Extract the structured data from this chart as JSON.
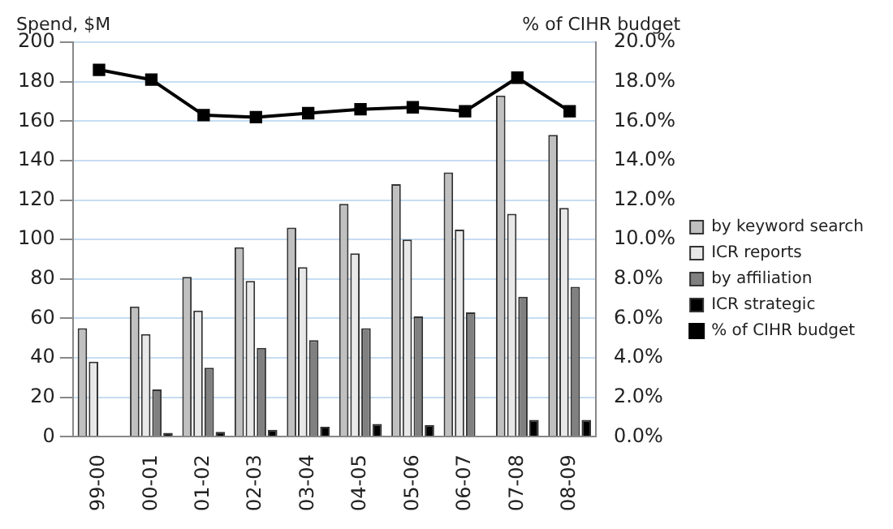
{
  "chart_data": {
    "type": "bar",
    "ylabel": "Spend, $M",
    "y2label": "% of CIHR budget",
    "categories": [
      "99-00",
      "00-01",
      "01-02",
      "02-03",
      "03-04",
      "04-05",
      "05-06",
      "06-07",
      "07-08",
      "08-09"
    ],
    "series": [
      {
        "name": "by keyword search",
        "color": "#c0c0c0",
        "values": [
          55,
          66,
          81,
          96,
          106,
          118,
          128,
          134,
          173,
          153
        ]
      },
      {
        "name": "ICR reports",
        "color": "#e8e8e8",
        "values": [
          38,
          52,
          64,
          79,
          86,
          93,
          100,
          105,
          113,
          116
        ]
      },
      {
        "name": "by affiliation",
        "color": "#808080",
        "values": [
          null,
          24,
          35,
          45,
          49,
          55,
          61,
          63,
          71,
          76
        ]
      },
      {
        "name": "ICR strategic",
        "color": "#000000",
        "values": [
          null,
          2,
          2.5,
          3.5,
          5,
          6.5,
          6,
          null,
          8.5,
          8.5
        ]
      },
      {
        "name": "% of CIHR budget",
        "type": "line",
        "axis": "y2",
        "color": "#000000",
        "marker": "square",
        "values": [
          18.6,
          18.1,
          16.3,
          16.2,
          16.4,
          16.6,
          16.7,
          16.5,
          18.2,
          16.5
        ]
      }
    ],
    "ylim": [
      0,
      200
    ],
    "yticks": [
      0,
      20,
      40,
      60,
      80,
      100,
      120,
      140,
      160,
      180,
      200
    ],
    "y2lim": [
      0,
      20
    ],
    "y2ticks": [
      {
        "value": 0,
        "label": "0.0%"
      },
      {
        "value": 2,
        "label": "2.0%"
      },
      {
        "value": 4,
        "label": "4.0%"
      },
      {
        "value": 6,
        "label": "6.0%"
      },
      {
        "value": 8,
        "label": "8.0%"
      },
      {
        "value": 10,
        "label": "10.0%"
      },
      {
        "value": 12,
        "label": "12.0%"
      },
      {
        "value": 14,
        "label": "14.0%"
      },
      {
        "value": 16,
        "label": "16.0%"
      },
      {
        "value": 18,
        "label": "18.0%"
      },
      {
        "value": 20,
        "label": "20.0%"
      }
    ],
    "grid": "y",
    "legend": "right"
  }
}
